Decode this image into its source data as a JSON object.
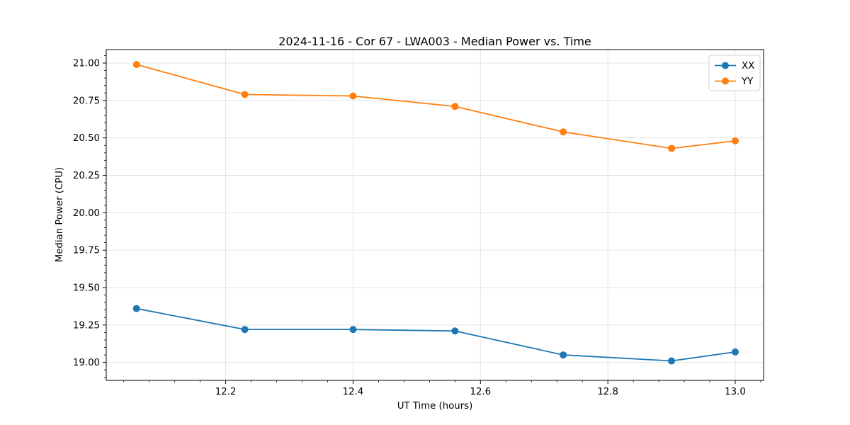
{
  "chart_data": {
    "type": "line",
    "title": "2024-11-16 - Cor 67 - LWA003 - Median Power vs. Time",
    "xlabel": "UT Time (hours)",
    "ylabel": "Median Power (CPU)",
    "x": [
      12.06,
      12.23,
      12.4,
      12.56,
      12.73,
      12.9,
      13.0
    ],
    "series": [
      {
        "name": "XX",
        "color": "#1f77b4",
        "values": [
          19.36,
          19.22,
          19.22,
          19.21,
          19.05,
          19.01,
          19.07
        ]
      },
      {
        "name": "YY",
        "color": "#ff7f0e",
        "values": [
          20.99,
          20.79,
          20.78,
          20.71,
          20.54,
          20.43,
          20.48
        ]
      }
    ],
    "xlim": [
      12.0125,
      13.0445
    ],
    "ylim": [
      18.88,
      21.09
    ],
    "xticks": [
      12.2,
      12.4,
      12.6,
      12.8,
      13.0
    ],
    "xtick_labels": [
      "12.2",
      "12.4",
      "12.6",
      "12.8",
      "13.0"
    ],
    "yticks": [
      19.0,
      19.25,
      19.5,
      19.75,
      20.0,
      20.25,
      20.5,
      20.75,
      21.0
    ],
    "ytick_labels": [
      "19.00",
      "19.25",
      "19.50",
      "19.75",
      "20.00",
      "20.25",
      "20.50",
      "20.75",
      "21.00"
    ],
    "xminor_step": 0.04,
    "yminor_step": 0.05,
    "grid": true,
    "grid_color": "#e0e0e0",
    "legend_position": "upper right",
    "legend_frame_color": "#cccccc",
    "marker": "o",
    "line_width": 1.8,
    "marker_radius": 5
  }
}
